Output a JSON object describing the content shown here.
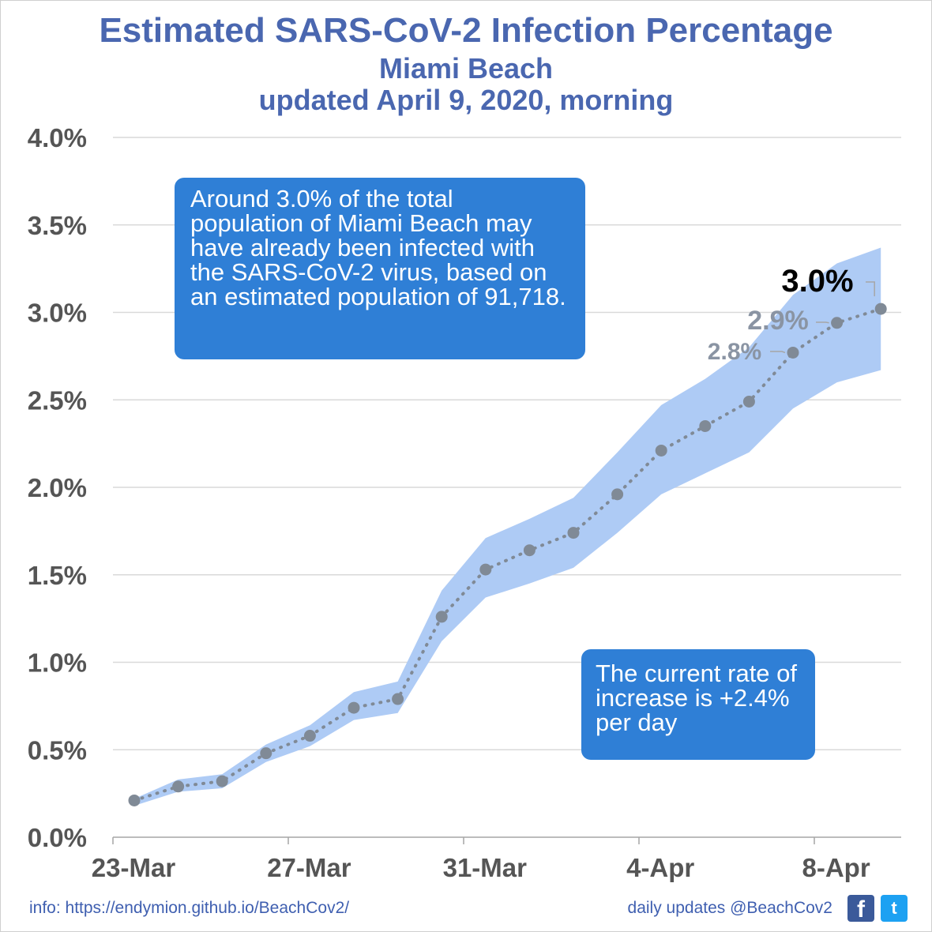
{
  "header": {
    "title": "Estimated SARS-CoV-2 Infection Percentage",
    "subtitle": "Miami Beach",
    "updated": "updated April 9, 2020, morning"
  },
  "callouts": {
    "main": "Around 3.0% of the total population of Miami Beach may have already been infected with the SARS-CoV-2 virus, based on an estimated population of 91,718.",
    "rate": "The current rate of increase is +2.4% per day"
  },
  "footer": {
    "info": "info: https://endymion.github.io/BeachCov2/",
    "updates": "daily updates @BeachCov2",
    "facebook_glyph": "f",
    "twitter_glyph": "t"
  },
  "colors": {
    "band": "#aecbf5",
    "marker": "#808a96",
    "callout_bg": "#2f7fd6",
    "title": "#4a67b0",
    "grid": "#d9d9d9"
  },
  "chart_data": {
    "type": "line",
    "x": [
      "23-Mar",
      "24-Mar",
      "25-Mar",
      "26-Mar",
      "27-Mar",
      "28-Mar",
      "29-Mar",
      "30-Mar",
      "31-Mar",
      "1-Apr",
      "2-Apr",
      "3-Apr",
      "4-Apr",
      "5-Apr",
      "6-Apr",
      "7-Apr",
      "8-Apr",
      "9-Apr"
    ],
    "x_tick_labels": [
      "23-Mar",
      "27-Mar",
      "31-Mar",
      "4-Apr",
      "8-Apr"
    ],
    "series": [
      {
        "values": [
          0.21,
          0.29,
          0.32,
          0.48,
          0.58,
          0.74,
          0.79,
          1.26,
          1.53,
          1.64,
          1.74,
          1.96,
          2.21,
          2.35,
          2.49,
          2.77,
          2.94,
          3.02
        ],
        "line_style": "dotted"
      }
    ],
    "band_upper": [
      0.22,
      0.33,
      0.36,
      0.53,
      0.64,
      0.83,
      0.89,
      1.41,
      1.71,
      1.82,
      1.94,
      2.2,
      2.47,
      2.62,
      2.8,
      3.1,
      3.28,
      3.37
    ],
    "band_lower": [
      0.18,
      0.26,
      0.28,
      0.43,
      0.52,
      0.67,
      0.71,
      1.12,
      1.37,
      1.45,
      1.54,
      1.74,
      1.96,
      2.08,
      2.2,
      2.45,
      2.6,
      2.67
    ],
    "y_tick_labels": [
      "0.0%",
      "0.5%",
      "1.0%",
      "1.5%",
      "2.0%",
      "2.5%",
      "3.0%",
      "3.5%",
      "4.0%"
    ],
    "ylim": [
      0,
      4
    ],
    "ylabel": "",
    "xlabel": "",
    "grid": true,
    "data_labels": [
      {
        "index": 15,
        "text": "2.8%"
      },
      {
        "index": 16,
        "text": "2.9%"
      },
      {
        "index": 17,
        "text": "3.0%",
        "emphasis": true
      }
    ]
  }
}
